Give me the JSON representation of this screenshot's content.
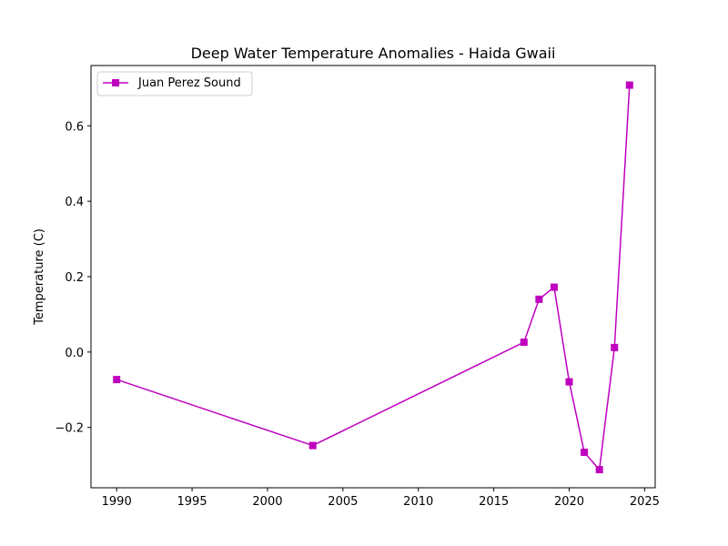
{
  "chart_data": {
    "type": "line",
    "title": "Deep Water Temperature Anomalies - Haida Gwaii",
    "xlabel": "",
    "ylabel": "Temperature (C)",
    "xlim": [
      1988.3,
      2025.7
    ],
    "ylim": [
      -0.36,
      0.76
    ],
    "xticks": [
      1990,
      1995,
      2000,
      2005,
      2010,
      2015,
      2020,
      2025
    ],
    "yticks": [
      -0.2,
      0.0,
      0.2,
      0.4,
      0.6
    ],
    "ytick_labels": [
      "−0.2",
      "0.0",
      "0.2",
      "0.4",
      "0.6"
    ],
    "grid": false,
    "legend_position": "upper-left",
    "series": [
      {
        "name": "Juan Perez Sound",
        "color": "#bf00bf",
        "marker": "square",
        "x": [
          1990,
          2003,
          2017,
          2018,
          2019,
          2020,
          2021,
          2022,
          2023,
          2024
        ],
        "y": [
          -0.073,
          -0.248,
          0.026,
          0.14,
          0.172,
          -0.079,
          -0.266,
          -0.312,
          0.012,
          0.708
        ]
      }
    ]
  }
}
